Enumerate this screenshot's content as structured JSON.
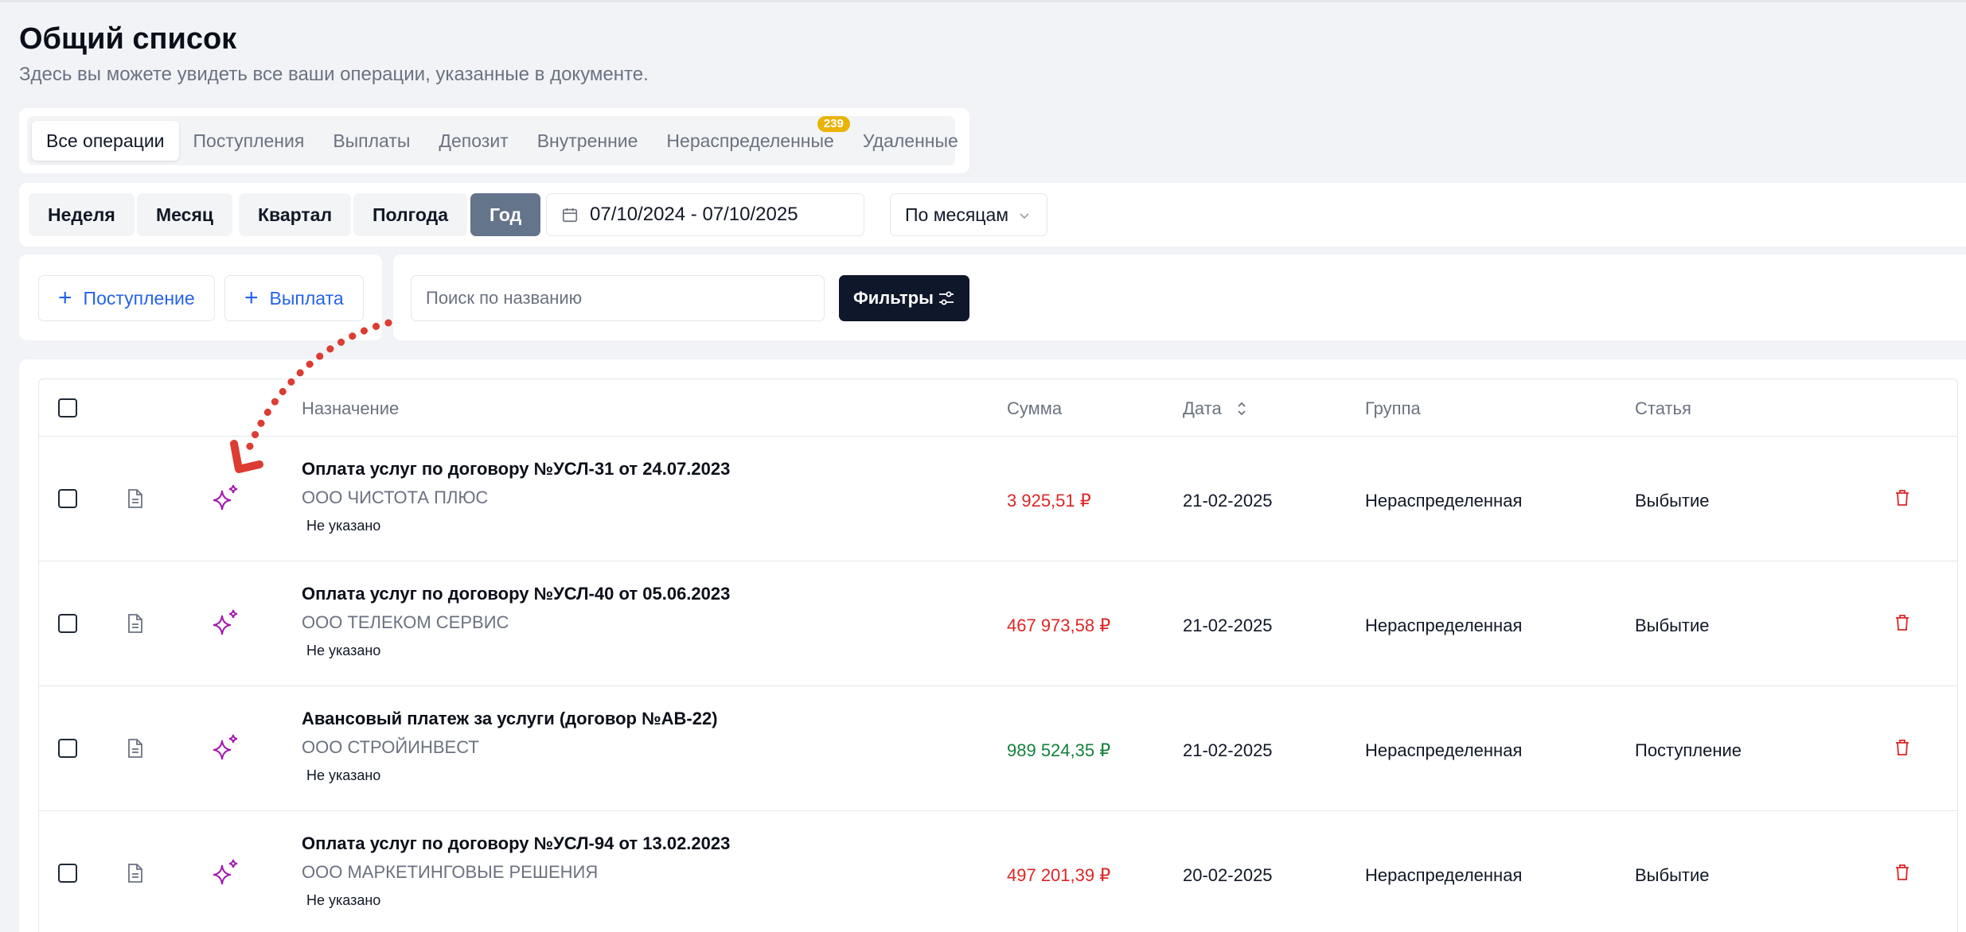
{
  "header": {
    "title": "Общий список",
    "subtitle": "Здесь вы можете увидеть все ваши операции, указанные в документе."
  },
  "tabs": [
    {
      "label": "Все операции",
      "active": true
    },
    {
      "label": "Поступления"
    },
    {
      "label": "Выплаты"
    },
    {
      "label": "Депозит"
    },
    {
      "label": "Внутренние"
    },
    {
      "label": "Нераспределенные",
      "badge": "239"
    },
    {
      "label": "Удаленные"
    }
  ],
  "period": {
    "buttons": [
      "Неделя",
      "Месяц",
      "Квартал",
      "Полгода",
      "Год"
    ],
    "active": "Год",
    "date_range": "07/10/2024 - 07/10/2025",
    "grouping": "По месяцам"
  },
  "actions": {
    "income_label": "Поступление",
    "payout_label": "Выплата"
  },
  "search": {
    "placeholder": "Поиск по названию",
    "filters_label": "Фильтры"
  },
  "table": {
    "columns": {
      "purpose": "Назначение",
      "sum": "Сумма",
      "date": "Дата",
      "group": "Группа",
      "article": "Статья"
    },
    "rows": [
      {
        "title": "Оплата услуг по договору №УСЛ-31 от 24.07.2023",
        "org": "ООО ЧИСТОТА ПЛЮС",
        "note": "Не указано",
        "sum": "3 925,51 ₽",
        "type": "neg",
        "date": "21-02-2025",
        "group": "Нераспределенная",
        "article": "Выбытие"
      },
      {
        "title": "Оплата услуг по договору №УСЛ-40 от 05.06.2023",
        "org": "ООО ТЕЛЕКОМ СЕРВИС",
        "note": "Не указано",
        "sum": "467 973,58 ₽",
        "type": "neg",
        "date": "21-02-2025",
        "group": "Нераспределенная",
        "article": "Выбытие"
      },
      {
        "title": "Авансовый платеж за услуги (договор №АВ-22)",
        "org": "ООО СТРОЙИНВЕСТ",
        "note": "Не указано",
        "sum": "989 524,35 ₽",
        "type": "pos",
        "date": "21-02-2025",
        "group": "Нераспределенная",
        "article": "Поступление"
      },
      {
        "title": "Оплата услуг по договору №УСЛ-94 от 13.02.2023",
        "org": "ООО МАРКЕТИНГОВЫЕ РЕШЕНИЯ",
        "note": "Не указано",
        "sum": "497 201,39 ₽",
        "type": "neg",
        "date": "20-02-2025",
        "group": "Нераспределенная",
        "article": "Выбытие"
      }
    ]
  },
  "colors": {
    "negative": "#dc2626",
    "positive": "#15803d",
    "accent": "#2563eb",
    "sparkle": "#a21caf",
    "arrow": "#dc3c32"
  }
}
